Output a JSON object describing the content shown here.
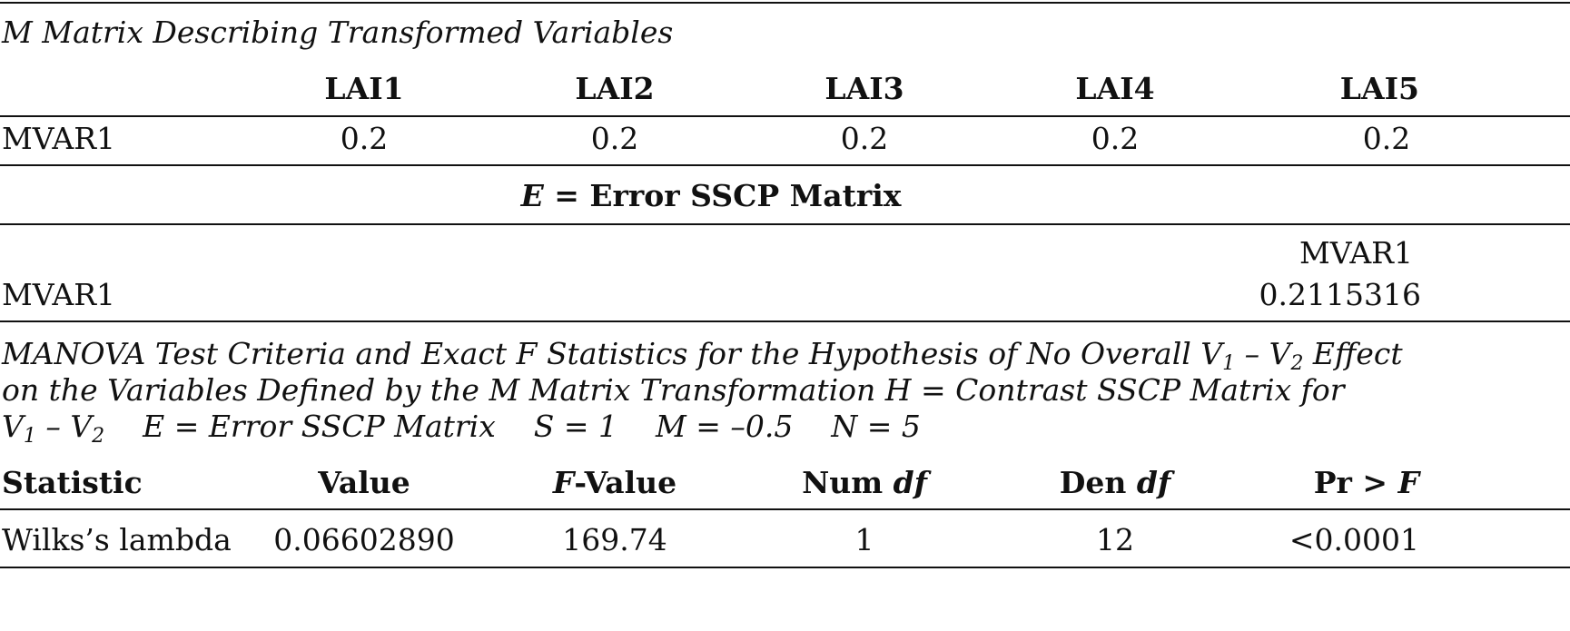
{
  "m_matrix": {
    "title": "M Matrix Describing Transformed Variables",
    "columns": [
      "LAI1",
      "LAI2",
      "LAI3",
      "LAI4",
      "LAI5"
    ],
    "row_label": "MVAR1",
    "values": [
      "0.2",
      "0.2",
      "0.2",
      "0.2",
      "0.2"
    ]
  },
  "error_matrix": {
    "title_symbol": "E",
    "title_rest": " = Error SSCP Matrix",
    "column": "MVAR1",
    "row_label": "MVAR1",
    "value": "0.2115316"
  },
  "manova": {
    "line1_a": "MANOVA Test Criteria and Exact F Statistics for the Hypothesis of No Overall V",
    "line1_sub1": "1",
    "line1_b": " – V",
    "line1_sub2": "2",
    "line1_c": " Effect",
    "line2": "on the Variables Defined by the M Matrix Transformation H = Contrast SSCP Matrix for",
    "line3_a": "V",
    "line3_sub1": "1",
    "line3_b": " – V",
    "line3_sub2": "2",
    "line3_c": "    E = Error SSCP Matrix    S = 1    M = –0.5    N = 5",
    "headers": {
      "statistic": "Statistic",
      "value": "Value",
      "f_value_f": "F",
      "f_value_rest": "-Value",
      "num_df_a": "Num ",
      "num_df_b": "df",
      "den_df_a": "Den ",
      "den_df_b": "df",
      "pr_a": "Pr > ",
      "pr_b": "F"
    },
    "row": {
      "statistic": "Wilks’s lambda",
      "value": "0.06602890",
      "f_value": "169.74",
      "num_df": "1",
      "den_df": "12",
      "pr": "<0.0001"
    }
  }
}
